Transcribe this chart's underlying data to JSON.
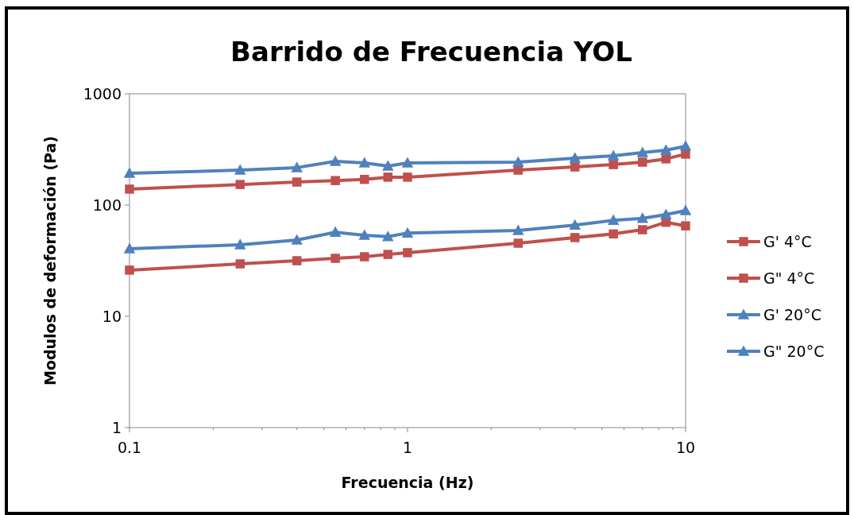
{
  "chart_data": {
    "type": "line",
    "title": "Barrido de Frecuencia YOL",
    "xlabel": "Frecuencia (Hz)",
    "ylabel": "Modulos de deformación (Pa)",
    "log": "xy",
    "xlim": [
      0.1,
      10
    ],
    "xticks": [
      0.1,
      1,
      10
    ],
    "ylim": [
      1,
      1000
    ],
    "yticks": [
      1,
      10,
      100,
      1000
    ],
    "grid": false,
    "legend": "right",
    "x": [
      0.1,
      0.25,
      0.4,
      0.55,
      0.7,
      0.85,
      1,
      2.5,
      4,
      5.5,
      7,
      8.5,
      10
    ],
    "series": [
      {
        "name": "G' 4°C",
        "color": "#c0504d",
        "marker": "square",
        "values": [
          139,
          153,
          161,
          166,
          170,
          178,
          178,
          206,
          220,
          231,
          243,
          260,
          287
        ]
      },
      {
        "name": "G\" 4°C",
        "color": "#c0504d",
        "marker": "square",
        "values": [
          26,
          29.6,
          31.6,
          33.2,
          34.3,
          36,
          37.3,
          45.4,
          51,
          55,
          60,
          70,
          65
        ]
      },
      {
        "name": "G' 20°C",
        "color": "#4f81bd",
        "marker": "triangle",
        "values": [
          193,
          206,
          217,
          247,
          239,
          224,
          239,
          243,
          264,
          277,
          296,
          311,
          338
        ]
      },
      {
        "name": "G\" 20°C",
        "color": "#4f81bd",
        "marker": "triangle",
        "values": [
          40.5,
          44,
          48.5,
          57,
          53.5,
          52,
          56,
          59,
          66,
          73,
          76,
          82,
          89
        ]
      }
    ]
  }
}
